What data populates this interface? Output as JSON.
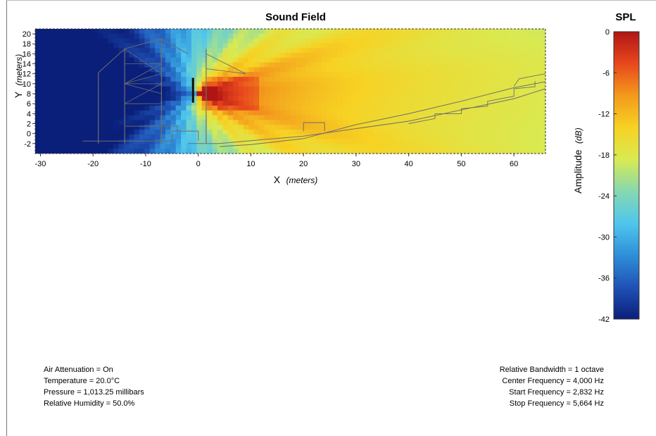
{
  "chart_data": {
    "type": "heatmap",
    "title": "Sound Field",
    "xlabel": "X",
    "xlabel_unit": "(meters)",
    "ylabel": "Y",
    "ylabel_unit": "(meters)",
    "xlim": [
      -31,
      66
    ],
    "ylim": [
      -4,
      21
    ],
    "x_ticks": [
      -30,
      -20,
      -10,
      0,
      10,
      20,
      30,
      40,
      50,
      60
    ],
    "y_ticks": [
      -2,
      0,
      2,
      4,
      6,
      8,
      10,
      12,
      14,
      16,
      18,
      20
    ],
    "colorbar": {
      "title": "SPL",
      "label": "Amplitude",
      "label_unit": "(dB)",
      "range": [
        -42,
        0
      ],
      "ticks": [
        0,
        -6,
        -12,
        -18,
        -24,
        -30,
        -36,
        -42
      ]
    },
    "source": {
      "x": 0,
      "y": 8,
      "aim_deg": -2
    },
    "scale": "jet"
  },
  "colors": {
    "jet_stops": [
      "#0a1f7a",
      "#1f52b6",
      "#2f8fd8",
      "#4fc6ee",
      "#86d8b0",
      "#d9ea52",
      "#f7d223",
      "#f39a1d",
      "#e8481c",
      "#b01515"
    ],
    "geometry_stroke": "#6e6e6e",
    "frame": "#333333"
  },
  "info_left": {
    "air_attenuation": "Air Attenuation = On",
    "temperature": "Temperature = 20.0°C",
    "pressure": "Pressure = 1,013.25 millibars",
    "humidity": "Relative Humidity = 50.0%"
  },
  "info_right": {
    "bandwidth": "Relative Bandwidth  = 1 octave",
    "center_frequency": "Center Frequency = 4,000 Hz",
    "start_frequency": "Start Frequency = 2,832 Hz",
    "stop_frequency": "Stop Frequency = 5,664 Hz"
  }
}
